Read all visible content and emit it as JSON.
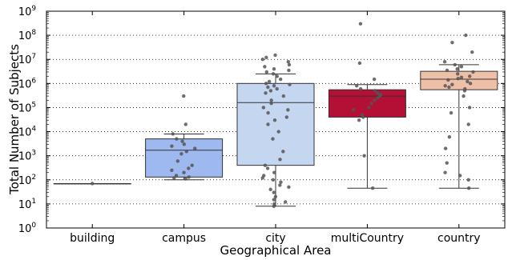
{
  "chart_data": {
    "type": "box",
    "xlabel": "Geographical Area",
    "ylabel": "Total Number of Subjects",
    "yscale": "log",
    "ylim": [
      1,
      1000000000
    ],
    "yticks": [
      {
        "value": 1,
        "base": "10",
        "exp": "0"
      },
      {
        "value": 10,
        "base": "10",
        "exp": "1"
      },
      {
        "value": 100,
        "base": "10",
        "exp": "2"
      },
      {
        "value": 1000,
        "base": "10",
        "exp": "3"
      },
      {
        "value": 10000,
        "base": "10",
        "exp": "4"
      },
      {
        "value": 100000,
        "base": "10",
        "exp": "5"
      },
      {
        "value": 1000000,
        "base": "10",
        "exp": "6"
      },
      {
        "value": 10000000,
        "base": "10",
        "exp": "7"
      },
      {
        "value": 100000000,
        "base": "10",
        "exp": "8"
      },
      {
        "value": 1000000000,
        "base": "10",
        "exp": "9"
      }
    ],
    "grid": "horizontal-dotted",
    "categories": [
      "building",
      "campus",
      "city",
      "multiCountry",
      "country"
    ],
    "boxes": [
      {
        "category": "building",
        "color": "#ffffff",
        "whisker_low": 70,
        "q1": 70,
        "median": 70,
        "q3": 70,
        "whisker_high": 70
      },
      {
        "category": "campus",
        "color": "#9db9ef",
        "whisker_low": 100,
        "q1": 130,
        "median": 1700,
        "q3": 5000,
        "whisker_high": 8000
      },
      {
        "category": "city",
        "color": "#c5d6f0",
        "whisker_low": 8,
        "q1": 400,
        "median": 160000,
        "q3": 1000000,
        "whisker_high": 2500000
      },
      {
        "category": "multiCountry",
        "color": "#b40f35",
        "whisker_low": 45,
        "q1": 40000,
        "median": 300000,
        "q3": 550000,
        "whisker_high": 900000
      },
      {
        "category": "country",
        "color": "#efc0a8",
        "whisker_low": 45,
        "q1": 550000,
        "median": 1500000,
        "q3": 3200000,
        "whisker_high": 6000000
      }
    ],
    "points": [
      {
        "category": "building",
        "values": [
          70
        ]
      },
      {
        "category": "campus",
        "values": [
          300000,
          20000,
          8000,
          5000,
          4000,
          3000,
          2500,
          2000,
          1500,
          1200,
          600,
          400,
          300,
          250,
          200,
          150,
          130,
          120,
          110
        ]
      },
      {
        "category": "city",
        "values": [
          15000000,
          12000000,
          10000000,
          8000000,
          6000000,
          5000000,
          4000000,
          3500000,
          3000000,
          2500000,
          2000000,
          1500000,
          1200000,
          1000000,
          900000,
          800000,
          700000,
          600000,
          500000,
          400000,
          300000,
          200000,
          150000,
          100000,
          80000,
          60000,
          40000,
          30000,
          20000,
          10000,
          5000,
          1500,
          700,
          400,
          300,
          200,
          150,
          120,
          100,
          80,
          60,
          50,
          40,
          30,
          20,
          15,
          12,
          10,
          8
        ]
      },
      {
        "category": "multiCountry",
        "values": [
          300000000,
          7000000,
          1500000,
          800000,
          600000,
          500000,
          400000,
          350000,
          300000,
          250000,
          200000,
          150000,
          100000,
          80000,
          50000,
          40000,
          30000,
          1000,
          45
        ]
      },
      {
        "category": "country",
        "values": [
          100000000,
          50000000,
          20000000,
          8000000,
          6000000,
          5000000,
          4000000,
          3500000,
          3000000,
          2500000,
          2000000,
          1800000,
          1600000,
          1400000,
          1200000,
          1000000,
          900000,
          800000,
          700000,
          600000,
          500000,
          300000,
          100000,
          60000,
          20000,
          6000,
          2000,
          500,
          200,
          150,
          100,
          45
        ]
      }
    ]
  }
}
